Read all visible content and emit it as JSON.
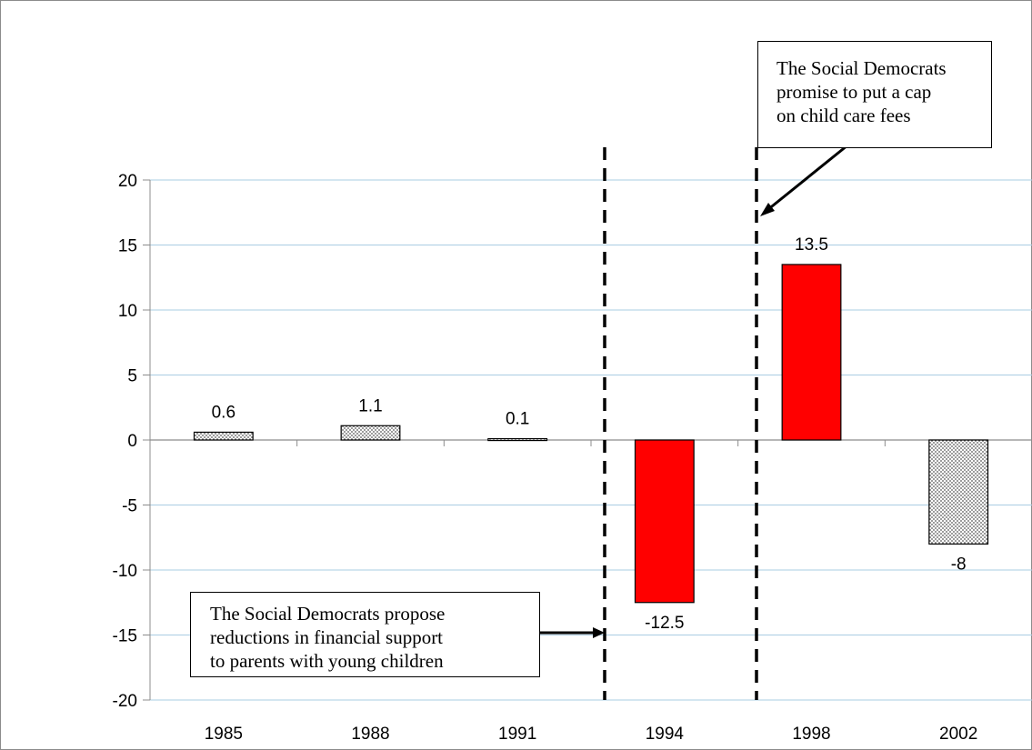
{
  "chart_data": {
    "type": "bar",
    "categories": [
      "1985",
      "1988",
      "1991",
      "1994",
      "1998",
      "2002"
    ],
    "values": [
      0.6,
      1.1,
      0.1,
      -12.5,
      13.5,
      -8
    ],
    "data_labels": [
      "0.6",
      "1.1",
      "0.1",
      "-12.5",
      "13.5",
      "-8"
    ],
    "bar_fills": [
      "dotted",
      "dotted",
      "dotted",
      "#ff0000",
      "#ff0000",
      "dotted"
    ],
    "ylim": [
      -20,
      20
    ],
    "yticks": [
      20,
      15,
      10,
      5,
      0,
      -5,
      -10,
      -15,
      -20
    ],
    "ytick_labels": [
      "20",
      "15",
      "10",
      "5",
      "0",
      "-5",
      "-10",
      "-15",
      "-20"
    ],
    "grid": true,
    "title": "",
    "xlabel": "",
    "ylabel": "",
    "annotations": [
      {
        "id": "annot-1998",
        "lines": [
          "The Social Democrats",
          "promise to put a cap",
          "on child care fees"
        ]
      },
      {
        "id": "annot-1994",
        "lines": [
          "The Social Democrats propose",
          "reductions in financial support",
          "to parents with young children"
        ]
      }
    ]
  }
}
